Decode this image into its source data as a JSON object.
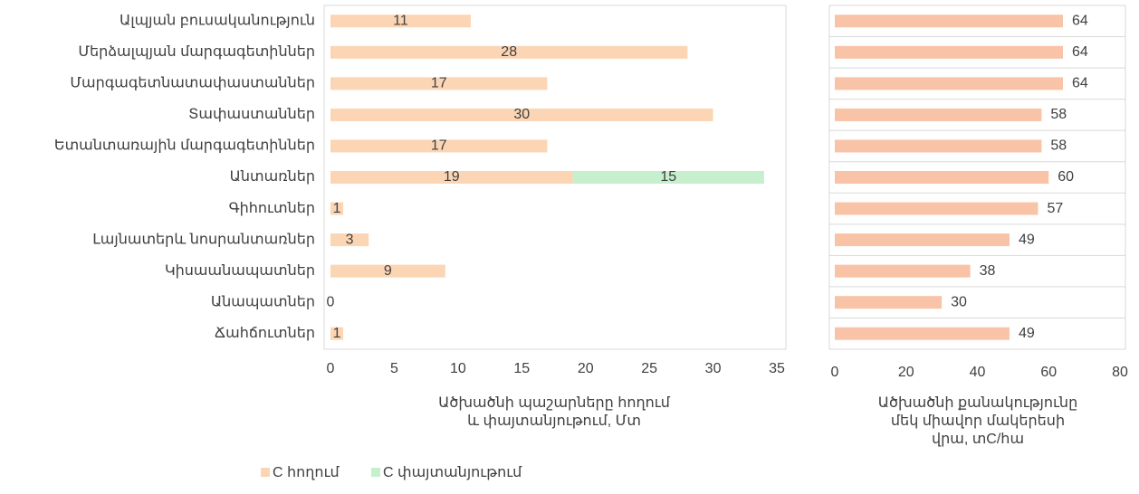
{
  "chart_data": [
    {
      "type": "stacked-bar-horizontal",
      "categories": [
        "Ալպյան բուսականություն",
        "Մերձալպյան մարգագետիններ",
        "Մարգագետնատափաստաններ",
        "Տափաստաններ",
        "Ետանտառային մարգագետիններ",
        "Անտառներ",
        "Գիհուտներ",
        "Լայնատերև նոսրանտառներ",
        "Կիսաանապատներ",
        "Անապատներ",
        "Ճահճուտներ"
      ],
      "series": [
        {
          "name": "C հողում",
          "color": "#fcd5b4",
          "values": [
            11,
            28,
            17,
            30,
            17,
            19,
            1,
            3,
            9,
            0,
            1
          ]
        },
        {
          "name": "C փայտանյութում",
          "color": "#c6efce",
          "values": [
            null,
            null,
            null,
            null,
            null,
            15,
            null,
            null,
            null,
            null,
            null
          ]
        }
      ],
      "xlim": [
        0,
        35
      ],
      "xticks": [
        0,
        5,
        10,
        15,
        20,
        25,
        30,
        35
      ],
      "xlabel": [
        "Ածխածնի պաշարները հողում",
        "և փայտանյութում, Մտ"
      ],
      "legend": "bottom"
    },
    {
      "type": "bar-horizontal",
      "values": [
        64,
        64,
        64,
        58,
        58,
        60,
        57,
        49,
        38,
        30,
        49
      ],
      "color": "#f8c3a6",
      "xlim": [
        0,
        80
      ],
      "xticks": [
        0,
        20,
        40,
        60,
        80
      ],
      "xlabel": [
        "Ածխածնի քանակությունը",
        "մեկ միավոր մակերեսի",
        "վրա, տC/հա"
      ]
    }
  ]
}
